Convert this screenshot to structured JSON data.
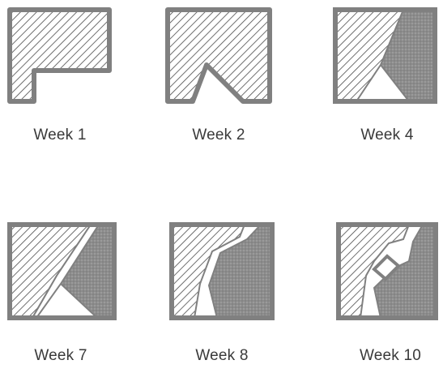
{
  "figure": {
    "panels": [
      {
        "label": "Week 1"
      },
      {
        "label": "Week 2"
      },
      {
        "label": "Week 4"
      },
      {
        "label": "Week 7"
      },
      {
        "label": "Week 8"
      },
      {
        "label": "Week 10"
      }
    ],
    "colors": {
      "outline": "#808080",
      "hatch": "#4a4a4a",
      "dense_fill": "#8c8c8c",
      "label_text": "#3a3a3a",
      "background": "#ffffff"
    },
    "icon_names": [
      "hatched-region-icon",
      "dense-region-icon"
    ]
  }
}
